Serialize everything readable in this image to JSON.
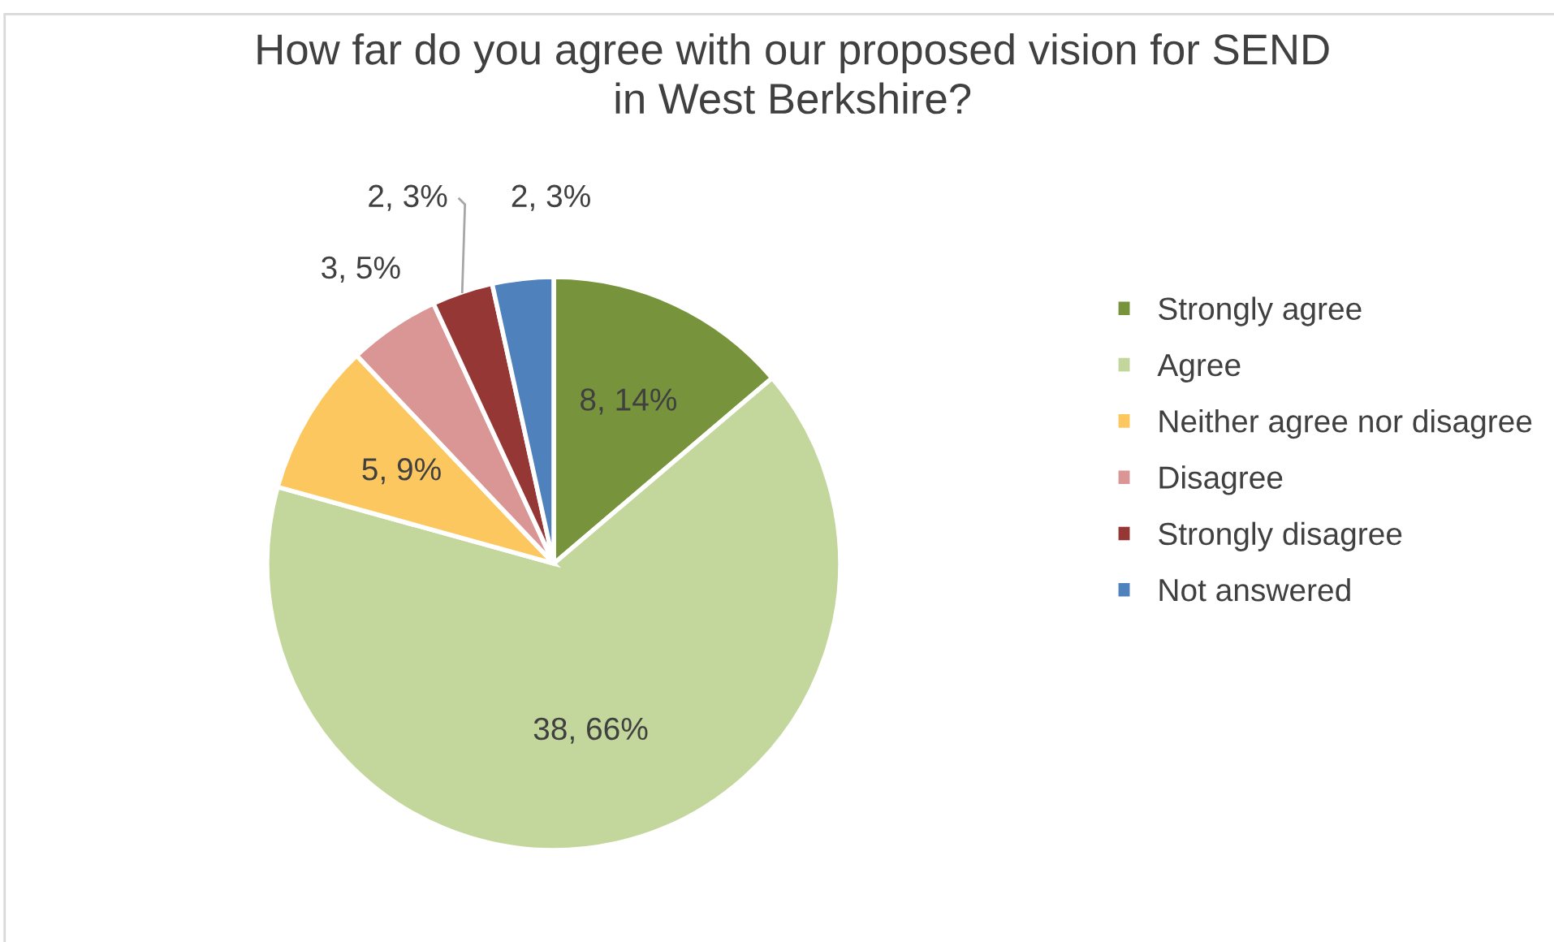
{
  "chart_data": {
    "type": "pie",
    "title": "How far do you agree with our proposed vision for SEND\nin West Berkshire?",
    "categories": [
      "Strongly agree",
      "Agree",
      "Neither agree nor disagree",
      "Disagree",
      "Strongly disagree",
      "Not answered"
    ],
    "values": [
      8,
      38,
      5,
      3,
      2,
      2
    ],
    "colors": [
      "#77933c",
      "#c3d69b",
      "#fcc75f",
      "#d99694",
      "#953735",
      "#4f81bd"
    ],
    "value_labels": [
      "8, 14%",
      "38, 66%",
      "5, 9%",
      "3, 5%",
      "2, 3%",
      "2, 3%"
    ],
    "legend": "right"
  }
}
